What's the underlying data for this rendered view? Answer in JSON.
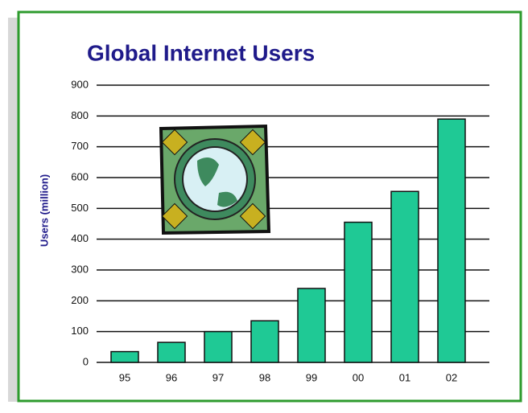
{
  "chart_data": {
    "type": "bar",
    "title": "Global Internet Users",
    "y_label": "Users (million)",
    "categories": [
      "95",
      "96",
      "97",
      "98",
      "99",
      "00",
      "01",
      "02"
    ],
    "values": [
      35,
      65,
      100,
      135,
      240,
      455,
      555,
      790
    ],
    "color": "#1fc995",
    "ylim": [
      0,
      900
    ],
    "yticks": [
      0,
      100,
      200,
      300,
      400,
      500,
      600,
      700,
      800,
      900
    ],
    "grid": true
  }
}
